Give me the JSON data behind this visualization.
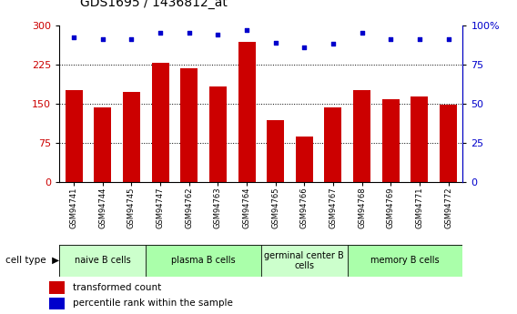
{
  "title": "GDS1695 / 1436812_at",
  "samples": [
    "GSM94741",
    "GSM94744",
    "GSM94745",
    "GSM94747",
    "GSM94762",
    "GSM94763",
    "GSM94764",
    "GSM94765",
    "GSM94766",
    "GSM94767",
    "GSM94768",
    "GSM94769",
    "GSM94771",
    "GSM94772"
  ],
  "bar_values": [
    175,
    143,
    172,
    228,
    218,
    182,
    268,
    118,
    88,
    143,
    175,
    158,
    163,
    148
  ],
  "dot_values": [
    92,
    91,
    91,
    95,
    95,
    94,
    97,
    89,
    86,
    88,
    95,
    91,
    91,
    91
  ],
  "bar_color": "#cc0000",
  "dot_color": "#0000cc",
  "ylim_left": [
    0,
    300
  ],
  "ylim_right": [
    0,
    100
  ],
  "yticks_left": [
    0,
    75,
    150,
    225,
    300
  ],
  "yticks_right": [
    0,
    25,
    50,
    75,
    100
  ],
  "ytick_labels_right": [
    "0",
    "25",
    "50",
    "75",
    "100%"
  ],
  "grid_values": [
    75,
    150,
    225
  ],
  "groups": [
    {
      "label": "naive B cells",
      "indices": [
        0,
        1,
        2
      ],
      "color": "#ccffcc"
    },
    {
      "label": "plasma B cells",
      "indices": [
        3,
        4,
        5,
        6
      ],
      "color": "#aaffaa"
    },
    {
      "label": "germinal center B\ncells",
      "indices": [
        7,
        8,
        9
      ],
      "color": "#ccffcc"
    },
    {
      "label": "memory B cells",
      "indices": [
        10,
        11,
        12,
        13
      ],
      "color": "#aaffaa"
    }
  ],
  "legend_bar_label": "transformed count",
  "legend_dot_label": "percentile rank within the sample",
  "cell_type_label": "cell type"
}
